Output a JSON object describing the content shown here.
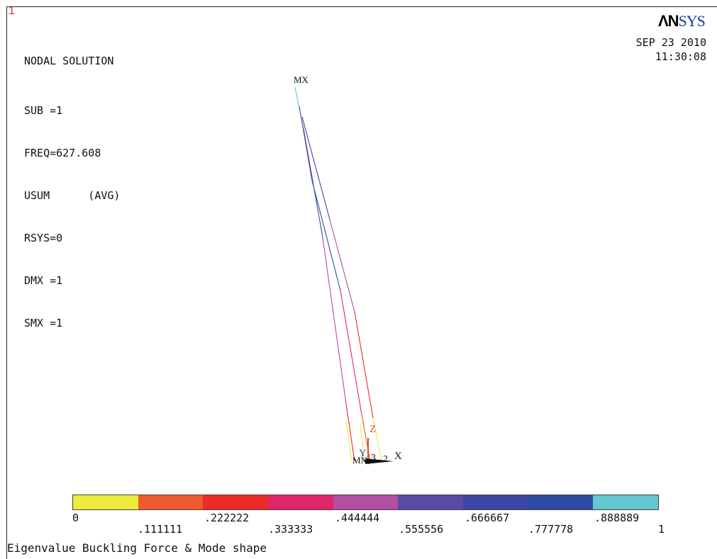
{
  "window": {
    "number": "1"
  },
  "logo": {
    "text_bold": "ΛN",
    "text_rest": "SYS"
  },
  "info": {
    "title": "NODAL SOLUTION",
    "sub": "SUB =1",
    "freq": "FREQ=627.608",
    "usum": "USUM      (AVG)",
    "rsys": "RSYS=0",
    "dmx": "DMX =1",
    "smx": "SMX =1"
  },
  "timestamp": {
    "date": "SEP 23 2010",
    "time": "11:30:08"
  },
  "model_labels": {
    "mx": "MX",
    "mn": "MN",
    "axis_x": "X",
    "axis_y": "Y",
    "axis_z": "Z",
    "node_2": "2",
    "node_3": "3"
  },
  "legend": {
    "colors": [
      "#ecec3a",
      "#ef5a2d",
      "#ea2b2a",
      "#e2246a",
      "#b24ea3",
      "#5a4aa5",
      "#3c48a8",
      "#2e4aa6",
      "#62c7cf"
    ],
    "labels_top": [
      "0",
      ".222222",
      ".444444",
      ".666667",
      ".888889"
    ],
    "labels_bottom": [
      ".111111",
      ".333333",
      ".555556",
      ".777778",
      "1"
    ]
  },
  "footer": {
    "title": "Eigenvalue Buckling Force & Mode shape"
  }
}
